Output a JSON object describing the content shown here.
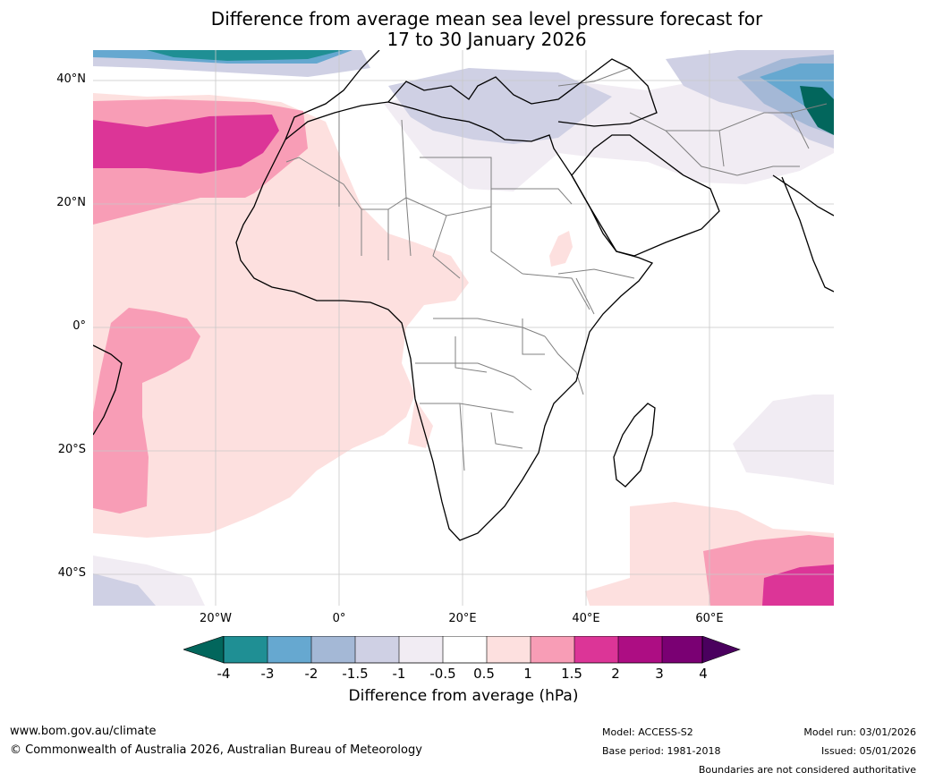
{
  "title": {
    "line1": "Difference from average mean sea level pressure forecast for",
    "line2": "17 to 30 January 2026"
  },
  "map": {
    "lat_labels": [
      "40°N",
      "20°N",
      "0°",
      "20°S",
      "40°S"
    ],
    "lon_labels": [
      "20°W",
      "0°",
      "20°E",
      "40°E",
      "60°E"
    ],
    "extent": {
      "lon_min": -40,
      "lon_max": 80,
      "lat_min": -45,
      "lat_max": 45
    },
    "gridlines": true,
    "ocean_color": "#ffffff",
    "coast_color": "#000000",
    "border_color": "#808080"
  },
  "colorbar": {
    "ticks": [
      "-4",
      "-3",
      "-2",
      "-1.5",
      "-1",
      "-0.5",
      "0.5",
      "1",
      "1.5",
      "2",
      "3",
      "4"
    ],
    "colors": [
      "#02665c",
      "#1f8f94",
      "#66a8d0",
      "#a4b8d6",
      "#cfd0e4",
      "#f1ecf3",
      "#ffffff",
      "#fde0df",
      "#f89db6",
      "#dc3597",
      "#ad0d83",
      "#7a0073",
      "#4a005e"
    ],
    "label": "Difference from average (hPa)"
  },
  "footer": {
    "website": "www.bom.gov.au/climate",
    "copyright": "© Commonwealth of Australia 2026, Australian Bureau of Meteorology",
    "model": "Model: ACCESS-S2",
    "base_period": "Base period: 1981-2018",
    "model_run": "Model run: 03/01/2026",
    "issued": "Issued: 05/01/2026",
    "disclaimer": "Boundaries are not considered authoritative"
  }
}
